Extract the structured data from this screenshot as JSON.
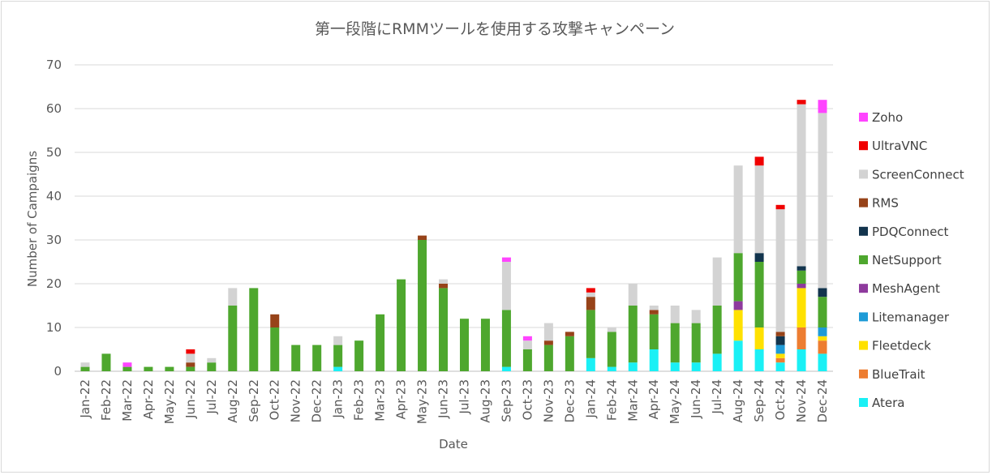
{
  "chart_data": {
    "type": "bar",
    "stacked": true,
    "title": "第一段階にRMMツールを使用する攻撃キャンペーン",
    "xlabel": "Date",
    "ylabel": "Number of Campaigns",
    "ylim": [
      0,
      70
    ],
    "yticks": [
      0,
      10,
      20,
      30,
      40,
      50,
      60,
      70
    ],
    "grid": true,
    "legend_position": "right",
    "categories": [
      "Jan-22",
      "Feb-22",
      "Mar-22",
      "Apr-22",
      "May-22",
      "Jun-22",
      "Jul-22",
      "Aug-22",
      "Sep-22",
      "Oct-22",
      "Nov-22",
      "Dec-22",
      "Jan-23",
      "Feb-23",
      "Mar-23",
      "Apr-23",
      "May-23",
      "Jun-23",
      "Jul-23",
      "Aug-23",
      "Sep-23",
      "Oct-23",
      "Nov-23",
      "Dec-23",
      "Jan-24",
      "Feb-24",
      "Mar-24",
      "Apr-24",
      "May-24",
      "Jun-24",
      "Jul-24",
      "Aug-24",
      "Sep-24",
      "Oct-24",
      "Nov-24",
      "Dec-24"
    ],
    "series": [
      {
        "name": "Atera",
        "color": "#1AF0F5",
        "values": [
          0,
          0,
          0,
          0,
          0,
          0,
          0,
          0,
          0,
          0,
          0,
          0,
          1,
          0,
          0,
          0,
          0,
          0,
          0,
          0,
          1,
          0,
          0,
          0,
          3,
          1,
          2,
          5,
          2,
          2,
          4,
          7,
          5,
          2,
          5,
          4
        ]
      },
      {
        "name": "BlueTrait",
        "color": "#ED7D31",
        "values": [
          0,
          0,
          0,
          0,
          0,
          0,
          0,
          0,
          0,
          0,
          0,
          0,
          0,
          0,
          0,
          0,
          0,
          0,
          0,
          0,
          0,
          0,
          0,
          0,
          0,
          0,
          0,
          0,
          0,
          0,
          0,
          0,
          0,
          1,
          5,
          3
        ]
      },
      {
        "name": "Fleetdeck",
        "color": "#FFE100",
        "values": [
          0,
          0,
          0,
          0,
          0,
          0,
          0,
          0,
          0,
          0,
          0,
          0,
          0,
          0,
          0,
          0,
          0,
          0,
          0,
          0,
          0,
          0,
          0,
          0,
          0,
          0,
          0,
          0,
          0,
          0,
          0,
          7,
          5,
          1,
          9,
          1
        ]
      },
      {
        "name": "Litemanager",
        "color": "#1E9BD7",
        "values": [
          0,
          0,
          0,
          0,
          0,
          0,
          0,
          0,
          0,
          0,
          0,
          0,
          0,
          0,
          0,
          0,
          0,
          0,
          0,
          0,
          0,
          0,
          0,
          0,
          0,
          0,
          0,
          0,
          0,
          0,
          0,
          0,
          0,
          2,
          0,
          2
        ]
      },
      {
        "name": "MeshAgent",
        "color": "#8E3A9D",
        "values": [
          0,
          0,
          0,
          0,
          0,
          0,
          0,
          0,
          0,
          0,
          0,
          0,
          0,
          0,
          0,
          0,
          0,
          0,
          0,
          0,
          0,
          0,
          0,
          0,
          0,
          0,
          0,
          0,
          0,
          0,
          0,
          2,
          0,
          0,
          1,
          0
        ]
      },
      {
        "name": "NetSupport",
        "color": "#4EA72E",
        "values": [
          1,
          4,
          1,
          1,
          1,
          1,
          2,
          15,
          19,
          10,
          6,
          6,
          5,
          7,
          13,
          21,
          30,
          19,
          12,
          12,
          13,
          5,
          6,
          8,
          11,
          8,
          13,
          8,
          9,
          9,
          11,
          11,
          15,
          0,
          3,
          7
        ]
      },
      {
        "name": "PDQConnect",
        "color": "#12344D",
        "values": [
          0,
          0,
          0,
          0,
          0,
          0,
          0,
          0,
          0,
          0,
          0,
          0,
          0,
          0,
          0,
          0,
          0,
          0,
          0,
          0,
          0,
          0,
          0,
          0,
          0,
          0,
          0,
          0,
          0,
          0,
          0,
          0,
          2,
          2,
          1,
          2
        ]
      },
      {
        "name": "RMS",
        "color": "#974319",
        "values": [
          0,
          0,
          0,
          0,
          0,
          1,
          0,
          0,
          0,
          3,
          0,
          0,
          0,
          0,
          0,
          0,
          1,
          1,
          0,
          0,
          0,
          0,
          1,
          1,
          3,
          0,
          0,
          1,
          0,
          0,
          0,
          0,
          0,
          1,
          0,
          0
        ]
      },
      {
        "name": "ScreenConnect",
        "color": "#D3D3D3",
        "values": [
          1,
          0,
          0,
          0,
          0,
          2,
          1,
          4,
          0,
          0,
          0,
          0,
          2,
          0,
          0,
          0,
          0,
          1,
          0,
          0,
          11,
          2,
          4,
          0,
          1,
          1,
          5,
          1,
          4,
          3,
          11,
          20,
          20,
          28,
          37,
          40
        ]
      },
      {
        "name": "UltraVNC",
        "color": "#F00000",
        "values": [
          0,
          0,
          0,
          0,
          0,
          1,
          0,
          0,
          0,
          0,
          0,
          0,
          0,
          0,
          0,
          0,
          0,
          0,
          0,
          0,
          0,
          0,
          0,
          0,
          1,
          0,
          0,
          0,
          0,
          0,
          0,
          0,
          2,
          1,
          1,
          0
        ]
      },
      {
        "name": "Zoho",
        "color": "#FF44FF",
        "values": [
          0,
          0,
          1,
          0,
          0,
          0,
          0,
          0,
          0,
          0,
          0,
          0,
          0,
          0,
          0,
          0,
          0,
          0,
          0,
          0,
          1,
          1,
          0,
          0,
          0,
          0,
          0,
          0,
          0,
          0,
          0,
          0,
          0,
          0,
          0,
          3
        ]
      }
    ]
  }
}
